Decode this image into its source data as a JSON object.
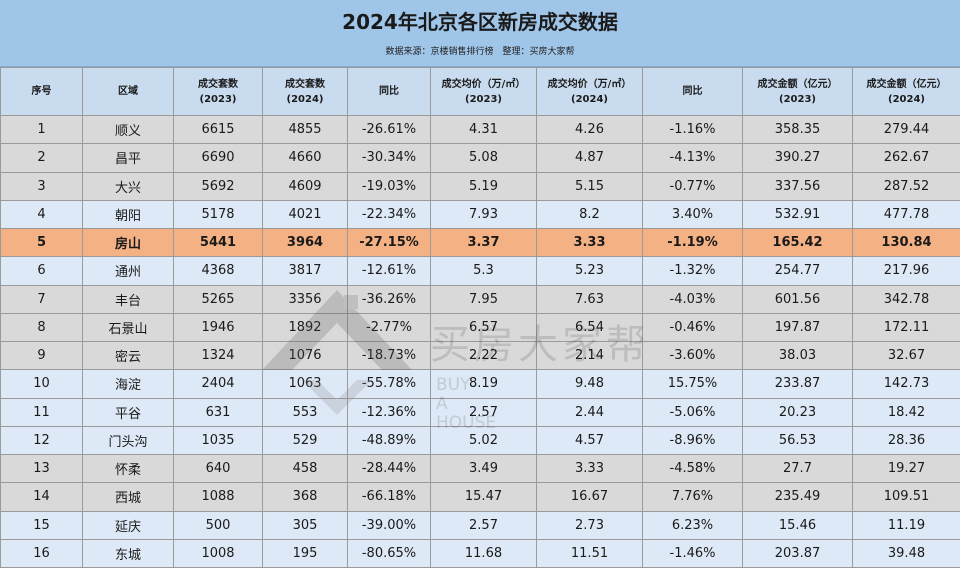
{
  "header": {
    "title": "2024年北京各区新房成交数据",
    "source": "数据来源：京楼销售排行榜",
    "editor": "整理：买房大家帮"
  },
  "watermark": {
    "brand": "买房大家帮",
    "en_line1": "BUY",
    "en_line2": "A",
    "en_line3": "HOUSE"
  },
  "colors": {
    "header_bg": "#9fc5e8",
    "th_bg": "#c9dcef",
    "row_gray": "#d9d9d9",
    "row_blue": "#dde9f6",
    "row_highlight": "#f4b183"
  },
  "chart_data": {
    "type": "table",
    "title": "2024年北京各区新房成交数据",
    "columns": [
      {
        "l1": "序号",
        "l2": ""
      },
      {
        "l1": "区域",
        "l2": ""
      },
      {
        "l1": "成交套数",
        "l2": "(2023)"
      },
      {
        "l1": "成交套数",
        "l2": "(2024)"
      },
      {
        "l1": "同比",
        "l2": ""
      },
      {
        "l1": "成交均价（万/㎡）",
        "l2": "(2023)"
      },
      {
        "l1": "成交均价（万/㎡）",
        "l2": "(2024)"
      },
      {
        "l1": "同比",
        "l2": ""
      },
      {
        "l1": "成交金额（亿元）",
        "l2": "(2023)"
      },
      {
        "l1": "成交金额（亿元）",
        "l2": "(2024)"
      }
    ],
    "rows": [
      [
        "1",
        "顺义",
        "6615",
        "4855",
        "-26.61%",
        "4.31",
        "4.26",
        "-1.16%",
        "358.35",
        "279.44"
      ],
      [
        "2",
        "昌平",
        "6690",
        "4660",
        "-30.34%",
        "5.08",
        "4.87",
        "-4.13%",
        "390.27",
        "262.67"
      ],
      [
        "3",
        "大兴",
        "5692",
        "4609",
        "-19.03%",
        "5.19",
        "5.15",
        "-0.77%",
        "337.56",
        "287.52"
      ],
      [
        "4",
        "朝阳",
        "5178",
        "4021",
        "-22.34%",
        "7.93",
        "8.2",
        "3.40%",
        "532.91",
        "477.78"
      ],
      [
        "5",
        "房山",
        "5441",
        "3964",
        "-27.15%",
        "3.37",
        "3.33",
        "-1.19%",
        "165.42",
        "130.84"
      ],
      [
        "6",
        "通州",
        "4368",
        "3817",
        "-12.61%",
        "5.3",
        "5.23",
        "-1.32%",
        "254.77",
        "217.96"
      ],
      [
        "7",
        "丰台",
        "5265",
        "3356",
        "-36.26%",
        "7.95",
        "7.63",
        "-4.03%",
        "601.56",
        "342.78"
      ],
      [
        "8",
        "石景山",
        "1946",
        "1892",
        "-2.77%",
        "6.57",
        "6.54",
        "-0.46%",
        "197.87",
        "172.11"
      ],
      [
        "9",
        "密云",
        "1324",
        "1076",
        "-18.73%",
        "2.22",
        "2.14",
        "-3.60%",
        "38.03",
        "32.67"
      ],
      [
        "10",
        "海淀",
        "2404",
        "1063",
        "-55.78%",
        "8.19",
        "9.48",
        "15.75%",
        "233.87",
        "142.73"
      ],
      [
        "11",
        "平谷",
        "631",
        "553",
        "-12.36%",
        "2.57",
        "2.44",
        "-5.06%",
        "20.23",
        "18.42"
      ],
      [
        "12",
        "门头沟",
        "1035",
        "529",
        "-48.89%",
        "5.02",
        "4.57",
        "-8.96%",
        "56.53",
        "28.36"
      ],
      [
        "13",
        "怀柔",
        "640",
        "458",
        "-28.44%",
        "3.49",
        "3.33",
        "-4.58%",
        "27.7",
        "19.27"
      ],
      [
        "14",
        "西城",
        "1088",
        "368",
        "-66.18%",
        "15.47",
        "16.67",
        "7.76%",
        "235.49",
        "109.51"
      ],
      [
        "15",
        "延庆",
        "500",
        "305",
        "-39.00%",
        "2.57",
        "2.73",
        "6.23%",
        "15.46",
        "11.19"
      ],
      [
        "16",
        "东城",
        "1008",
        "195",
        "-80.65%",
        "11.68",
        "11.51",
        "-1.46%",
        "203.87",
        "39.48"
      ]
    ],
    "row_colors": [
      "gray",
      "gray",
      "gray",
      "blue",
      "highlight",
      "blue",
      "gray",
      "gray",
      "gray",
      "blue",
      "blue",
      "blue",
      "gray",
      "gray",
      "blue",
      "blue"
    ]
  }
}
